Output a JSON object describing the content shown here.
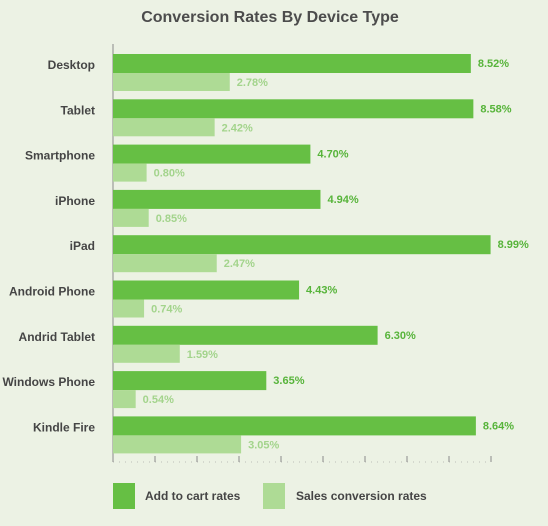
{
  "colors": {
    "add_to_cart": "#66bf44",
    "sales_conversion": "#aedb95",
    "background": "#ecf2e4",
    "axis": "#8a8a8a"
  },
  "chart_data": {
    "type": "bar",
    "orientation": "horizontal",
    "title": "Conversion Rates By Device Type",
    "categories": [
      "Desktop",
      "Tablet",
      "Smartphone",
      "iPhone",
      "iPad",
      "Android Phone",
      "Andrid Tablet",
      "Windows Phone",
      "Kindle Fire"
    ],
    "series": [
      {
        "name": "Add to cart rates",
        "values": [
          8.52,
          8.58,
          4.7,
          4.94,
          8.99,
          4.43,
          6.3,
          3.65,
          8.64
        ],
        "labels": [
          "8.52%",
          "8.58%",
          "4.70%",
          "4.94%",
          "8.99%",
          "4.43%",
          "6.30%",
          "3.65%",
          "8.64%"
        ]
      },
      {
        "name": "Sales conversion rates",
        "values": [
          2.78,
          2.42,
          0.8,
          0.85,
          2.47,
          0.74,
          1.59,
          0.54,
          3.05
        ],
        "labels": [
          "2.78%",
          "2.42%",
          "0.80%",
          "0.85%",
          "2.47%",
          "0.74%",
          "1.59%",
          "0.54%",
          "3.05%"
        ]
      }
    ],
    "xlim": [
      0,
      9
    ],
    "grid": false,
    "legend_position": "bottom"
  }
}
